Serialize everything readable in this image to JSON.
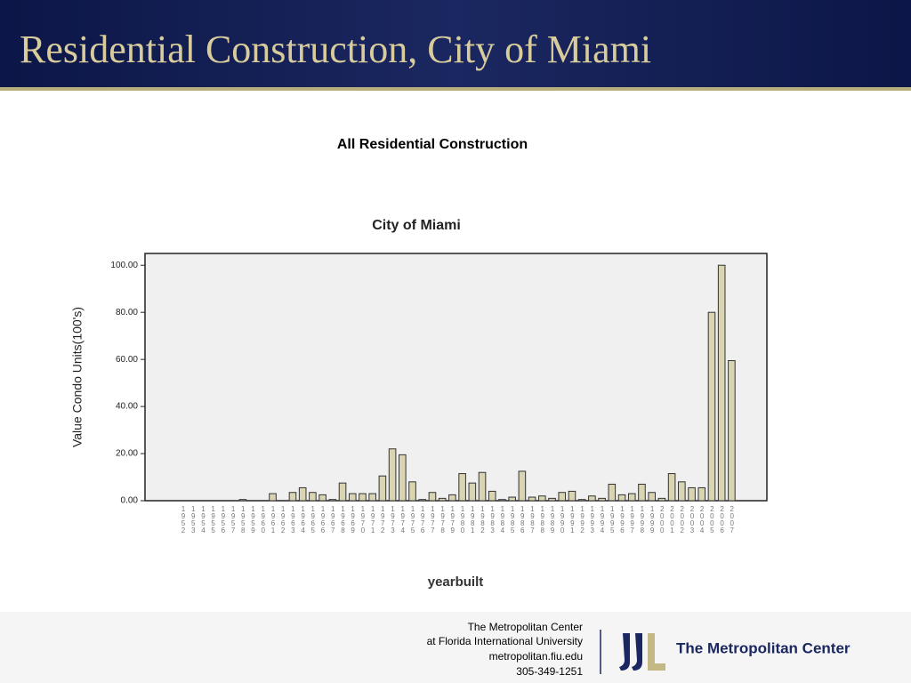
{
  "slide": {
    "title": "Residential Construction, City of Miami",
    "heading": "All Residential Construction",
    "footer": [
      "The Metropolitan Center",
      "at Florida International University",
      "metropolitan.fiu.edu",
      "305-349-1251"
    ],
    "logo": "The Metropolitan Center"
  },
  "chart_data": {
    "type": "bar",
    "title": "City of Miami",
    "x_label": "yearbuilt",
    "y_label": "Value Condo Units(100's)",
    "categories": [
      "1952",
      "1953",
      "1954",
      "1955",
      "1956",
      "1957",
      "1958",
      "1959",
      "1960",
      "1961",
      "1962",
      "1963",
      "1964",
      "1965",
      "1966",
      "1967",
      "1968",
      "1969",
      "1970",
      "1971",
      "1972",
      "1973",
      "1974",
      "1975",
      "1976",
      "1977",
      "1978",
      "1979",
      "1980",
      "1981",
      "1982",
      "1983",
      "1984",
      "1985",
      "1986",
      "1987",
      "1988",
      "1989",
      "1990",
      "1991",
      "1992",
      "1993",
      "1994",
      "1995",
      "1996",
      "1997",
      "1998",
      "1999",
      "2000",
      "2001",
      "2002",
      "2003",
      "2004",
      "2005",
      "2006",
      "2007"
    ],
    "values": [
      0,
      0,
      0,
      0,
      0,
      0,
      0.5,
      0,
      0,
      3,
      0,
      3.5,
      5.5,
      3.5,
      2.5,
      0.5,
      7.5,
      3,
      3,
      3,
      10.5,
      22,
      19.5,
      8,
      0.5,
      3.5,
      1,
      2.5,
      11.5,
      7.5,
      12,
      4,
      0.5,
      1.5,
      12.5,
      1.5,
      2,
      1,
      3.5,
      4,
      0.5,
      2,
      1,
      7,
      2.5,
      3,
      7,
      3.5,
      1,
      11.5,
      8,
      5.5,
      5.5,
      80,
      100,
      59.5
    ],
    "color": "#d9d5b3",
    "ylim": [
      0,
      105
    ],
    "yticks": [
      {
        "value": 0,
        "label": "0.00"
      },
      {
        "value": 20,
        "label": "20.00"
      },
      {
        "value": 40,
        "label": "40.00"
      },
      {
        "value": 60,
        "label": "60.00"
      },
      {
        "value": 80,
        "label": "80.00"
      },
      {
        "value": 100,
        "label": "100.00"
      }
    ]
  }
}
